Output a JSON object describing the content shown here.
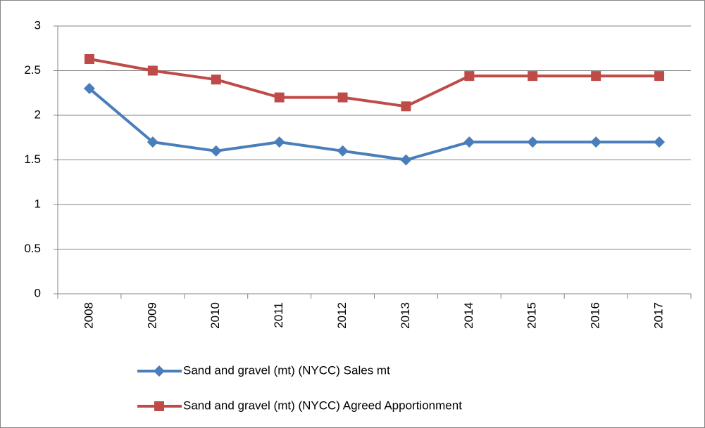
{
  "chart_data": {
    "type": "line",
    "categories": [
      "2008",
      "2009",
      "2010",
      "2011",
      "2012",
      "2013",
      "2014",
      "2015",
      "2016",
      "2017"
    ],
    "series": [
      {
        "name": "Sand and gravel (mt) (NYCC) Sales mt",
        "color": "#4a7ebb",
        "marker": "diamond",
        "values": [
          2.3,
          1.7,
          1.6,
          1.7,
          1.6,
          1.5,
          1.7,
          1.7,
          1.7,
          1.7
        ]
      },
      {
        "name": "Sand and gravel (mt) (NYCC) Agreed Apportionment",
        "color": "#be4b48",
        "marker": "square",
        "values": [
          2.63,
          2.5,
          2.4,
          2.2,
          2.2,
          2.1,
          2.44,
          2.44,
          2.44,
          2.44
        ]
      }
    ],
    "ylim": [
      0,
      3
    ],
    "yticks": [
      0,
      0.5,
      1,
      1.5,
      2,
      2.5,
      3
    ],
    "grid": true,
    "legend": "bottom"
  }
}
